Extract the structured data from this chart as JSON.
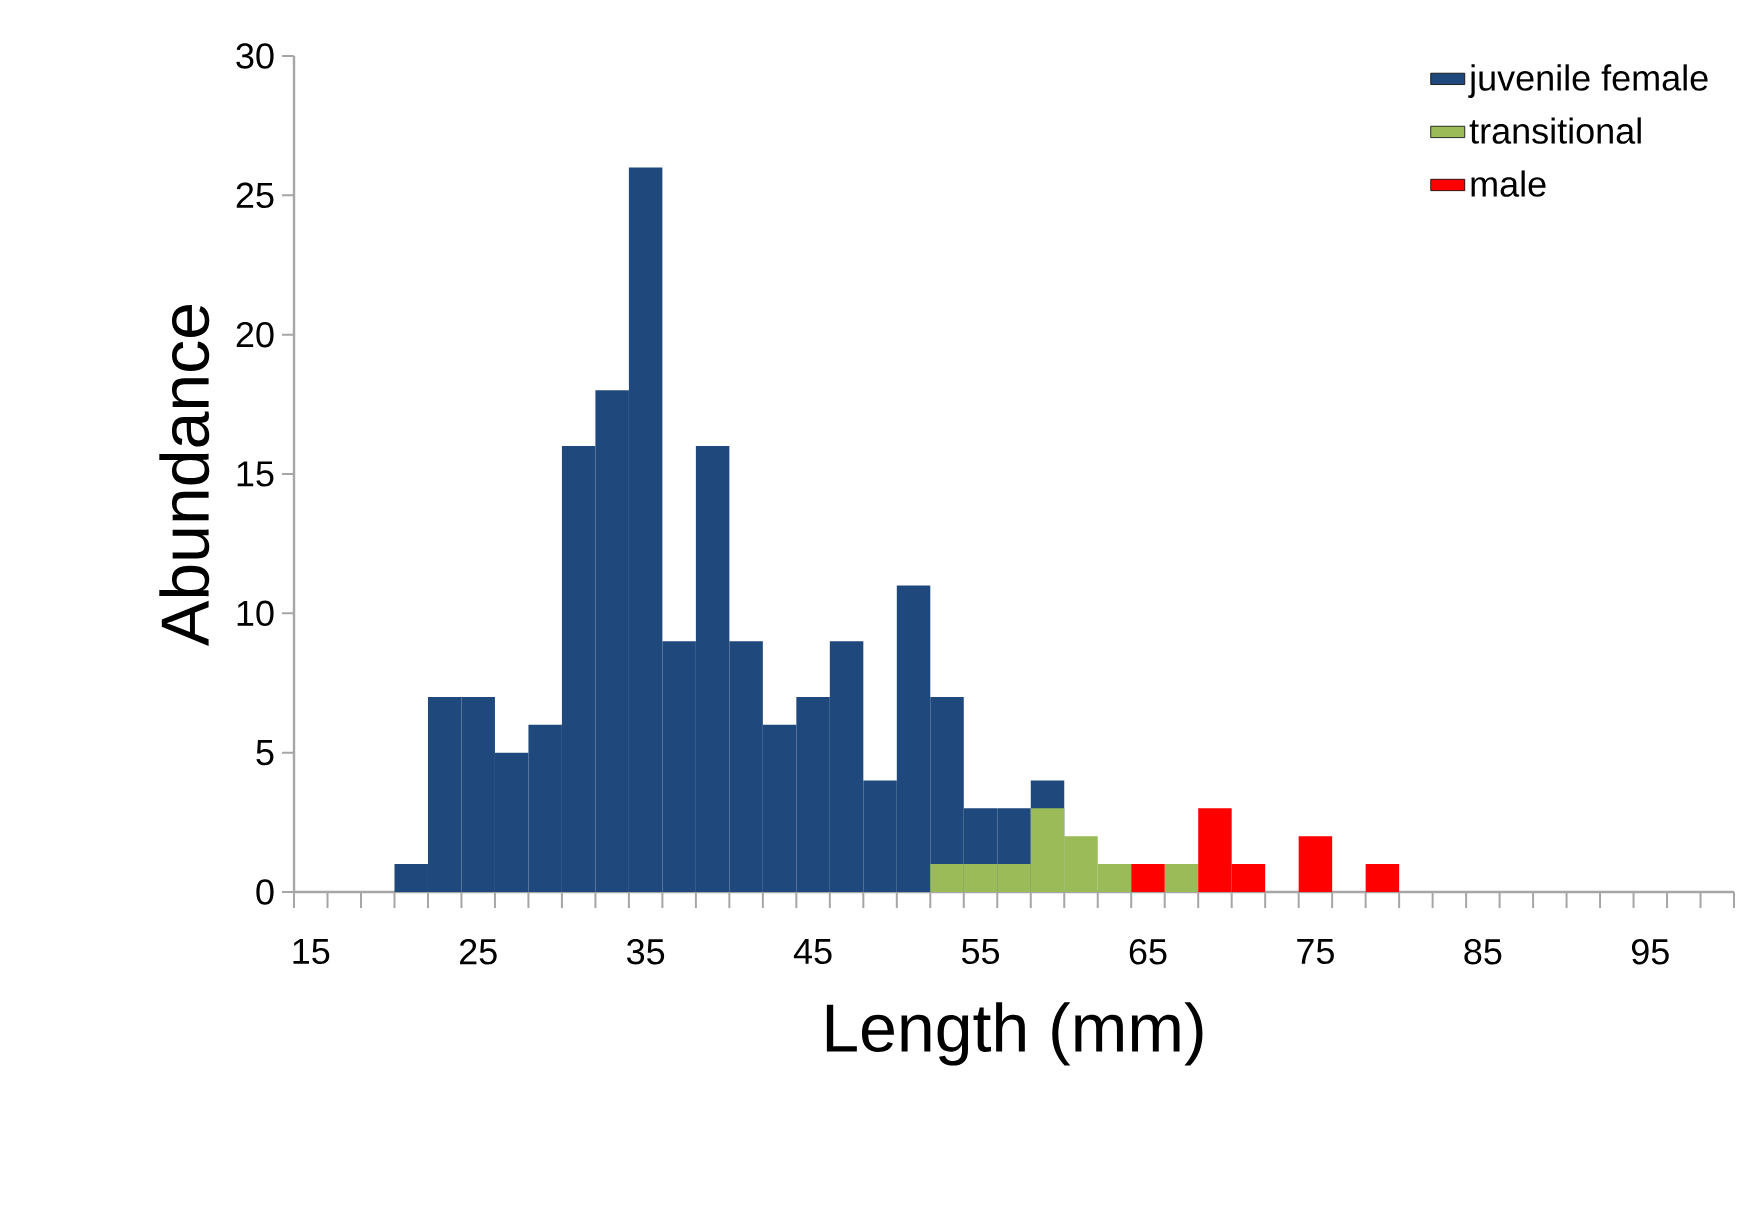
{
  "chart_data": {
    "type": "bar",
    "xlabel": "Length (mm)",
    "ylabel": "Abundance",
    "categories": [
      "15",
      null,
      null,
      null,
      null,
      "25",
      null,
      null,
      null,
      null,
      "35",
      null,
      null,
      null,
      null,
      "45",
      null,
      null,
      null,
      null,
      "55",
      null,
      null,
      null,
      null,
      "65",
      null,
      null,
      null,
      null,
      "75",
      null,
      null,
      null,
      null,
      "85",
      null,
      null,
      null,
      null,
      "95",
      null,
      null
    ],
    "series": [
      {
        "name": "juvenile female",
        "color": "#1f497d",
        "values": [
          null,
          null,
          null,
          1,
          7,
          7,
          5,
          6,
          16,
          18,
          26,
          9,
          16,
          9,
          6,
          7,
          9,
          4,
          11,
          7,
          3,
          3,
          4,
          null,
          null,
          null,
          null,
          null,
          null,
          null,
          null,
          null,
          null,
          null,
          null,
          null,
          null,
          null,
          null,
          null,
          null,
          null,
          null
        ]
      },
      {
        "name": "transitional",
        "color": "#9bbb59",
        "values": [
          null,
          null,
          null,
          null,
          null,
          null,
          null,
          null,
          null,
          null,
          null,
          null,
          null,
          null,
          null,
          null,
          null,
          null,
          null,
          1,
          1,
          1,
          3,
          2,
          1,
          null,
          1,
          null,
          null,
          null,
          null,
          null,
          null,
          null,
          null,
          null,
          null,
          null,
          null,
          null,
          null,
          null,
          null
        ]
      },
      {
        "name": "male",
        "color": "#ff0000",
        "values": [
          null,
          null,
          null,
          null,
          null,
          null,
          null,
          null,
          null,
          null,
          null,
          null,
          null,
          null,
          null,
          null,
          null,
          null,
          null,
          null,
          null,
          null,
          null,
          null,
          null,
          1,
          null,
          3,
          1,
          null,
          2,
          null,
          1,
          null,
          null,
          null,
          null,
          null,
          null,
          null,
          null,
          null,
          null
        ]
      }
    ],
    "ylim": [
      0,
      30
    ],
    "yticks": [
      0,
      5,
      10,
      15,
      20,
      25,
      30
    ],
    "legend": "top right"
  }
}
